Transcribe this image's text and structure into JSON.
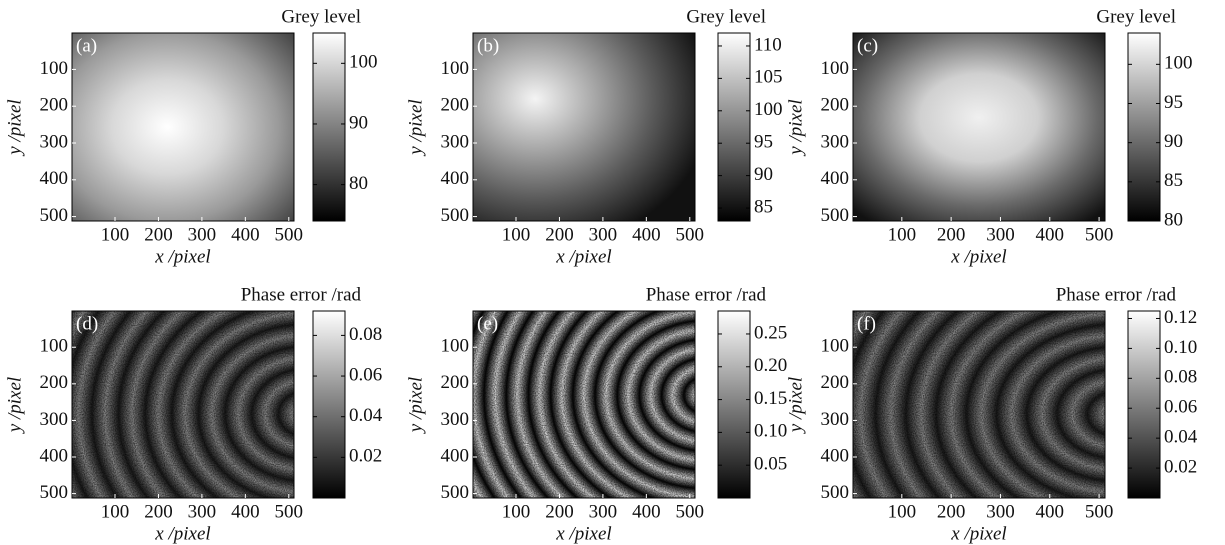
{
  "chart_data": [
    {
      "type": "heatmap",
      "panel_label": "(a)",
      "colorbar_label": "Grey level",
      "xlabel": "x /pixel",
      "ylabel": "y /pixel",
      "xlim": [
        1,
        512
      ],
      "ylim": [
        1,
        512
      ],
      "yreverse": true,
      "xticks": [
        100,
        200,
        300,
        400,
        500
      ],
      "yticks": [
        100,
        200,
        300,
        400,
        500
      ],
      "clim": [
        74,
        105
      ],
      "cticks": [
        80,
        90,
        100
      ]
    },
    {
      "type": "heatmap",
      "panel_label": "(b)",
      "colorbar_label": "Grey level",
      "xlabel": "x /pixel",
      "ylabel": "y /pixel",
      "xlim": [
        1,
        512
      ],
      "ylim": [
        1,
        512
      ],
      "yreverse": true,
      "xticks": [
        100,
        200,
        300,
        400,
        500
      ],
      "yticks": [
        100,
        200,
        300,
        400,
        500
      ],
      "clim": [
        83,
        112
      ],
      "cticks": [
        85,
        90,
        95,
        100,
        105,
        110
      ]
    },
    {
      "type": "heatmap",
      "panel_label": "(c)",
      "colorbar_label": "Grey level",
      "xlabel": "x /pixel",
      "ylabel": "y /pixel",
      "xlim": [
        1,
        512
      ],
      "ylim": [
        1,
        512
      ],
      "yreverse": true,
      "xticks": [
        100,
        200,
        300,
        400,
        500
      ],
      "yticks": [
        100,
        200,
        300,
        400,
        500
      ],
      "clim": [
        80,
        104
      ],
      "cticks": [
        80,
        85,
        90,
        95,
        100
      ]
    },
    {
      "type": "heatmap",
      "panel_label": "(d)",
      "colorbar_label": "Phase error /rad",
      "xlabel": "x /pixel",
      "ylabel": "y /pixel",
      "xlim": [
        1,
        512
      ],
      "ylim": [
        1,
        512
      ],
      "yreverse": true,
      "xticks": [
        100,
        200,
        300,
        400,
        500
      ],
      "yticks": [
        100,
        200,
        300,
        400,
        500
      ],
      "clim": [
        0,
        0.092
      ],
      "cticks": [
        0.02,
        0.04,
        0.06,
        0.08
      ]
    },
    {
      "type": "heatmap",
      "panel_label": "(e)",
      "colorbar_label": "Phase error /rad",
      "xlabel": "x /pixel",
      "ylabel": "y /pixel",
      "xlim": [
        1,
        512
      ],
      "ylim": [
        1,
        512
      ],
      "yreverse": true,
      "xticks": [
        100,
        200,
        300,
        400,
        500
      ],
      "yticks": [
        100,
        200,
        300,
        400,
        500
      ],
      "clim": [
        0,
        0.285
      ],
      "cticks": [
        0.05,
        {
          "value": 0.1,
          "label": "0.10"
        },
        0.15,
        {
          "value": 0.2,
          "label": "0.20"
        },
        0.25
      ]
    },
    {
      "type": "heatmap",
      "panel_label": "(f)",
      "colorbar_label": "Phase error /rad",
      "xlabel": "x /pixel",
      "ylabel": "y /pixel",
      "xlim": [
        1,
        512
      ],
      "ylim": [
        1,
        512
      ],
      "yreverse": true,
      "xticks": [
        100,
        200,
        300,
        400,
        500
      ],
      "yticks": [
        100,
        200,
        300,
        400,
        500
      ],
      "clim": [
        0,
        0.125
      ],
      "cticks": [
        0.02,
        0.04,
        0.06,
        0.08,
        {
          "value": 0.1,
          "label": "0.10"
        },
        0.12
      ]
    }
  ]
}
